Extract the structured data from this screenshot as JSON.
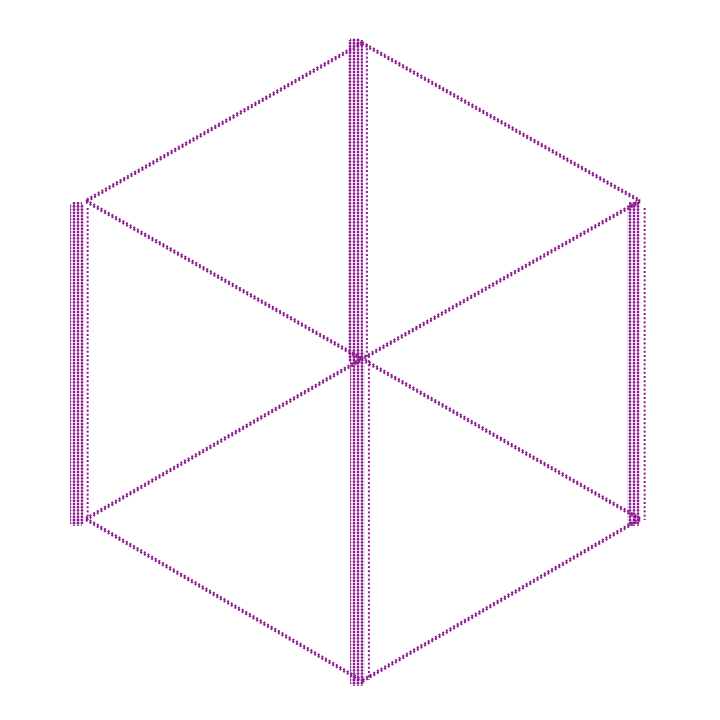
{
  "figure": {
    "kind": "hexagonal wireframe of dotted lines",
    "line_color": "#8b1a8f",
    "background": "#ffffff"
  }
}
